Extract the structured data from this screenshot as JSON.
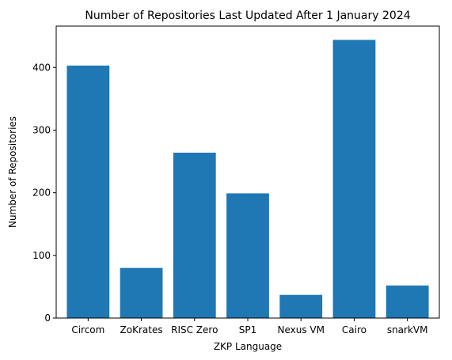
{
  "chart_data": {
    "type": "bar",
    "title": "Number of Repositories Last Updated After 1 January 2024",
    "xlabel": "ZKP Language",
    "ylabel": "Number of Repositories",
    "categories": [
      "Circom",
      "ZoKrates",
      "RISC Zero",
      "SP1",
      "Nexus VM",
      "Cairo",
      "snarkVM"
    ],
    "values": [
      403,
      80,
      264,
      199,
      37,
      444,
      52
    ],
    "ylim": [
      0,
      466
    ],
    "yticks": [
      0,
      100,
      200,
      300,
      400
    ],
    "grid": false,
    "bar_color": "#1f77b4"
  }
}
